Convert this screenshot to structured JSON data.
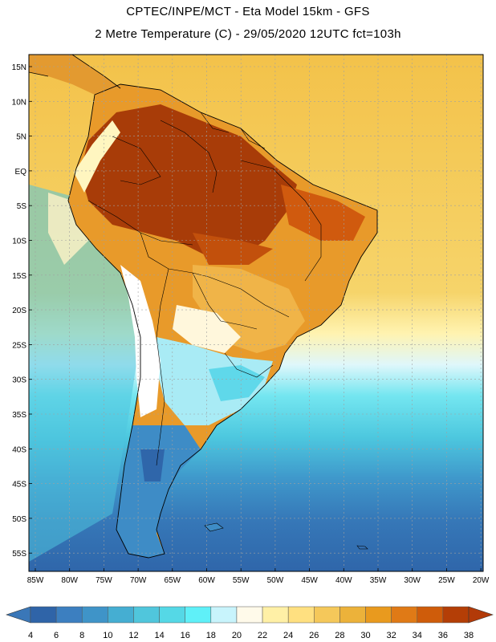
{
  "header": {
    "line1": "CPTEC/INPE/MCT -  Eta Model 15km - GFS",
    "line2": "2 Metre Temperature (C) - 29/05/2020 12UTC fct=103h"
  },
  "map": {
    "lat_labels": [
      "15N",
      "10N",
      "5N",
      "EQ",
      "5S",
      "10S",
      "15S",
      "20S",
      "25S",
      "30S",
      "35S",
      "40S",
      "45S",
      "50S",
      "55S"
    ],
    "lon_labels": [
      "85W",
      "80W",
      "75W",
      "70W",
      "65W",
      "60W",
      "55W",
      "50W",
      "45W",
      "40W",
      "35W",
      "30W",
      "25W",
      "20W"
    ]
  },
  "colorbar": {
    "labels": [
      "4",
      "6",
      "8",
      "10",
      "12",
      "14",
      "16",
      "18",
      "20",
      "22",
      "24",
      "26",
      "28",
      "30",
      "32",
      "34",
      "36",
      "38"
    ],
    "colors": {
      "below": "#3a77b8",
      "bins": [
        "#2f64a8",
        "#3c7fc0",
        "#3f94c8",
        "#45aed2",
        "#50c6dc",
        "#55d8e6",
        "#5ff0f8",
        "#c8f4fc",
        "#fffaea",
        "#fff0a6",
        "#ffe080",
        "#f5c85a",
        "#ecb23a",
        "#e99a1e",
        "#e07a16",
        "#cf5c0a",
        "#b43e06"
      ],
      "above": "#b23a08"
    }
  },
  "colors": {
    "ocean_north": "#f6cf5e",
    "ocean_transition": "#fff0a6",
    "ocean_mid": "#55d8e6",
    "ocean_south": "#3c7fc0",
    "amazon": "#a83c08",
    "land_hot": "#d86010",
    "land_warm": "#e89a2a",
    "land_mild": "#f5d070",
    "land_cool": "#fffae8",
    "andes": "#ffffff",
    "patagonia": "#3e8cc6",
    "border": "#000000",
    "grid": "#a0a0a0"
  }
}
